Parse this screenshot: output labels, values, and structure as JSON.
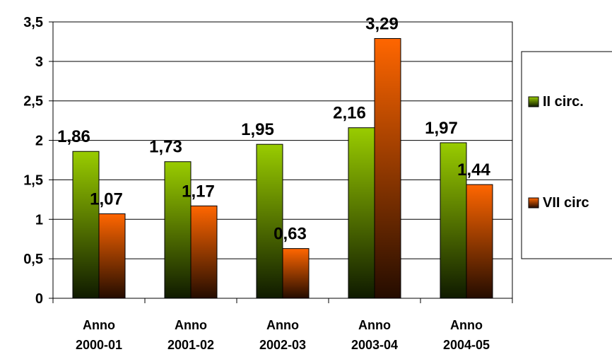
{
  "chart_data": {
    "type": "bar",
    "categories": [
      [
        "Anno",
        "2000-01"
      ],
      [
        "Anno",
        "2001-02"
      ],
      [
        "Anno",
        "2002-03"
      ],
      [
        "Anno",
        "2003-04"
      ],
      [
        "Anno",
        "2004-05"
      ]
    ],
    "series": [
      {
        "name": "II circ.",
        "values": [
          1.86,
          1.73,
          1.95,
          2.16,
          1.97
        ],
        "labels": [
          "1,86",
          "1,73",
          "1,95",
          "2,16",
          "1,97"
        ],
        "color_top": "#99cc00",
        "color_bottom": "#0f1a00"
      },
      {
        "name": "VII circ",
        "values": [
          1.07,
          1.17,
          0.63,
          3.29,
          1.44
        ],
        "labels": [
          "1,07",
          "1,17",
          "0,63",
          "3,29",
          "1,44"
        ],
        "color_top": "#ff6600",
        "color_bottom": "#240c00"
      }
    ],
    "ylim": [
      0,
      3.5
    ],
    "yticks": [
      {
        "value": 0,
        "label": "0"
      },
      {
        "value": 0.5,
        "label": "0,5"
      },
      {
        "value": 1,
        "label": "1"
      },
      {
        "value": 1.5,
        "label": "1,5"
      },
      {
        "value": 2,
        "label": "2"
      },
      {
        "value": 2.5,
        "label": "2,5"
      },
      {
        "value": 3,
        "label": "3"
      },
      {
        "value": 3.5,
        "label": "3,5"
      }
    ],
    "grid": true,
    "legend_position": "right",
    "title": "",
    "xlabel": "",
    "ylabel": ""
  }
}
